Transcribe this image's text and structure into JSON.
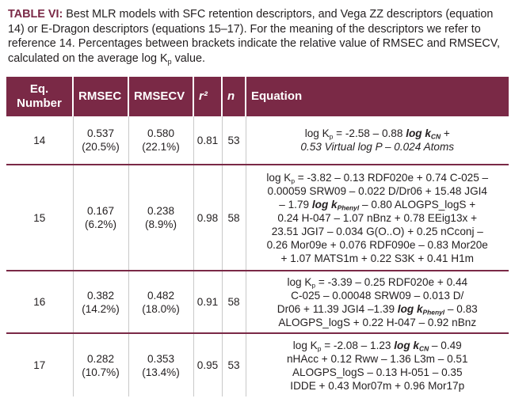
{
  "caption": {
    "label": "TABLE VI:",
    "text_before_sub": " Best MLR models with SFC retention descriptors, and Vega ZZ descriptors (equation 14) or E-Dragon descriptors (equations 15–17). For the meaning of the descriptors we refer to reference 14. Percentages between brackets indicate the relative value of RMSEC and RMSECV, calculated on the average log K",
    "sub": "p",
    "text_after_sub": " value."
  },
  "table": {
    "headers": {
      "eq": "Eq. Number",
      "rmsec": "RMSEC",
      "rmsecv": "RMSECV",
      "r2": "r²",
      "n": "n",
      "equation": "Equation"
    },
    "rows": [
      {
        "eq": "14",
        "rmsec": "0.537",
        "rmsec_pct": "(20.5%)",
        "rmsecv": "0.580",
        "rmsecv_pct": "(22.1%)",
        "r2": "0.81",
        "n": "53",
        "equation": {
          "l1a": "log K",
          "l1sub": "p",
          "l1b": " = -2.58 – 0.88 ",
          "l1bold": "log k",
          "l1boldsub": "CN",
          "l1c": " +",
          "l2": "0.53 Virtual log P – 0.024 Atoms"
        }
      },
      {
        "eq": "15",
        "rmsec": "0.167",
        "rmsec_pct": "(6.2%)",
        "rmsecv": "0.238",
        "rmsecv_pct": "(8.9%)",
        "r2": "0.98",
        "n": "58",
        "equation": {
          "l1a": "log K",
          "l1sub": "p",
          "l1b": " = -3.82 – 0.13 RDF020e + 0.74 C-025 –",
          "l2": "0.00059 SRW09 – 0.022 D/Dr06 + 15.48 JGI4",
          "l3a": "– 1.79 ",
          "l3bold": "log k",
          "l3boldsub": "Phenyl",
          "l3b": " – 0.80 ALOGPS_logS +",
          "l4": "0.24 H-047 – 1.07 nBnz + 0.78 EEig13x +",
          "l5": "23.51 JGI7 – 0.034 G(O..O) + 0.25 nCconj –",
          "l6": "0.26 Mor09e + 0.076 RDF090e – 0.83 Mor20e",
          "l7": "+ 1.07 MATS1m + 0.22 S3K + 0.41 H1m"
        }
      },
      {
        "eq": "16",
        "rmsec": "0.382",
        "rmsec_pct": "(14.2%)",
        "rmsecv": "0.482",
        "rmsecv_pct": "(18.0%)",
        "r2": "0.91",
        "n": "58",
        "equation": {
          "l1a": "log K",
          "l1sub": "p",
          "l1b": " = -3.39 – 0.25 RDF020e + 0.44",
          "l2": "C-025 – 0.00048 SRW09 – 0.013 D/",
          "l3a": "Dr06 + 11.39 JGI4 –1.39 ",
          "l3bold": "log k",
          "l3boldsub": "Phenyl",
          "l3b": " – 0.83",
          "l4": "ALOGPS_logS + 0.22 H-047 – 0.92 nBnz"
        }
      },
      {
        "eq": "17",
        "rmsec": "0.282",
        "rmsec_pct": "(10.7%)",
        "rmsecv": "0.353",
        "rmsecv_pct": "(13.4%)",
        "r2": "0.95",
        "n": "53",
        "equation": {
          "l1a": "log K",
          "l1sub": "p",
          "l1b": " = -2.08 – 1.23 ",
          "l1bold": "log k",
          "l1boldsub": "CN",
          "l1c": " – 0.49",
          "l2": "nHAcc + 0.12 Rww – 1.36 L3m – 0.51",
          "l3": "ALOGPS_logS – 0.13 H-051 – 0.35",
          "l4": "IDDE + 0.43 Mor07m + 0.96 Mor17p"
        }
      }
    ]
  }
}
